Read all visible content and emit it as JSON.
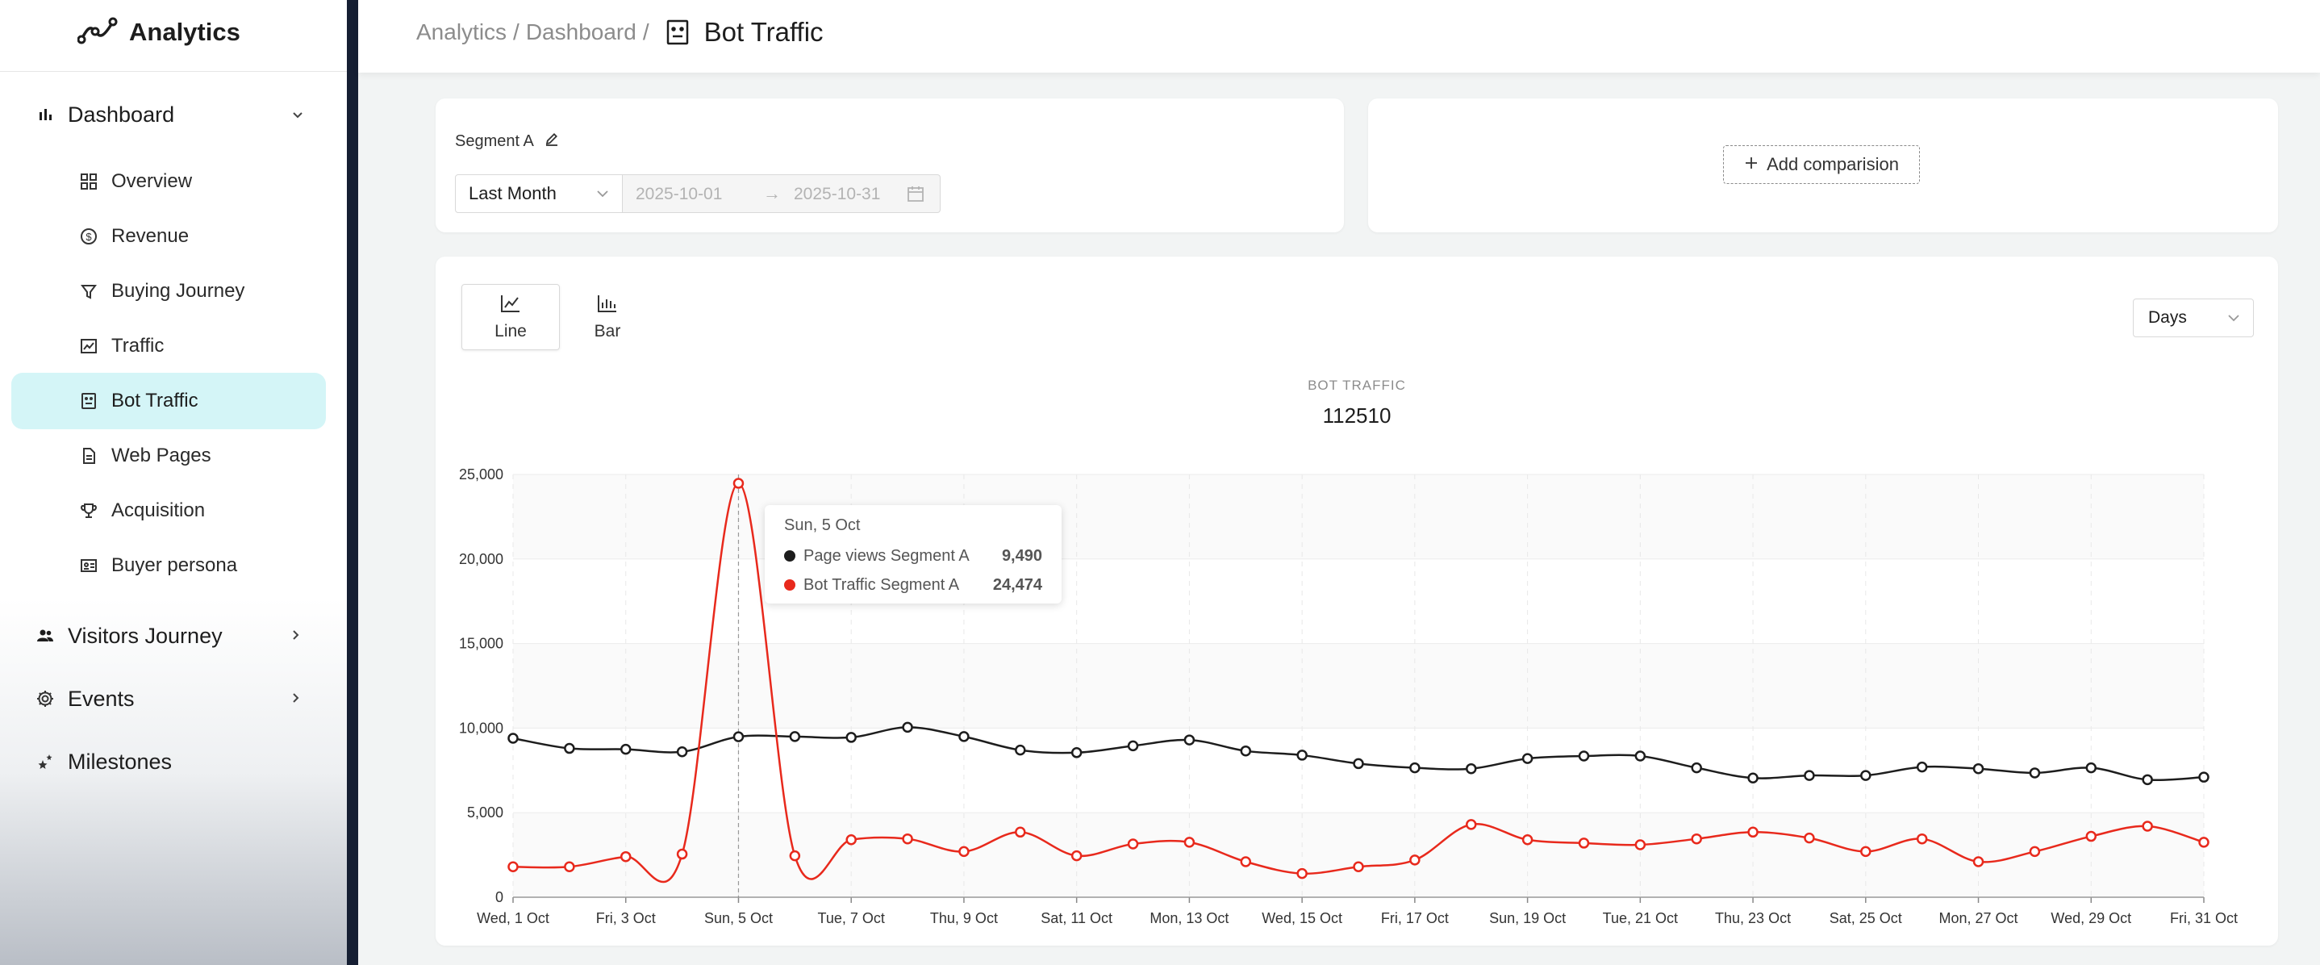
{
  "app": {
    "name": "Analytics"
  },
  "sidebar": {
    "groups": [
      {
        "label": "Dashboard",
        "icon": "bar-chart-icon",
        "expanded": true
      },
      {
        "label": "Visitors Journey",
        "icon": "users-icon",
        "expanded": false
      },
      {
        "label": "Events",
        "icon": "gear-icon",
        "expanded": false
      },
      {
        "label": "Milestones",
        "icon": "stars-icon",
        "expanded": false
      }
    ],
    "items": [
      {
        "label": "Overview",
        "icon": "grid-icon"
      },
      {
        "label": "Revenue",
        "icon": "dollar-icon"
      },
      {
        "label": "Buying Journey",
        "icon": "funnel-icon"
      },
      {
        "label": "Traffic",
        "icon": "line-chart-icon"
      },
      {
        "label": "Bot Traffic",
        "icon": "robot-icon",
        "active": true
      },
      {
        "label": "Web Pages",
        "icon": "file-icon"
      },
      {
        "label": "Acquisition",
        "icon": "trophy-icon"
      },
      {
        "label": "Buyer persona",
        "icon": "id-card-icon"
      }
    ]
  },
  "header": {
    "crumb_analytics": "Analytics",
    "crumb_dashboard": "Dashboard",
    "separator": "/",
    "title": "Bot Traffic"
  },
  "segment": {
    "label": "Segment A",
    "range": "Last Month",
    "date_start": "2025-10-01",
    "date_end": "2025-10-31",
    "arrow": "→"
  },
  "comparison": {
    "add_label": "Add comparision"
  },
  "chart_controls": {
    "line_label": "Line",
    "bar_label": "Bar",
    "interval": "Days"
  },
  "chart_data": {
    "type": "line",
    "title": "BOT TRAFFIC",
    "subtitle": "112510",
    "x": [
      "Wed, 1 Oct",
      "Thu, 2 Oct",
      "Fri, 3 Oct",
      "Sat, 4 Oct",
      "Sun, 5 Oct",
      "Mon, 6 Oct",
      "Tue, 7 Oct",
      "Wed, 8 Oct",
      "Thu, 9 Oct",
      "Fri, 10 Oct",
      "Sat, 11 Oct",
      "Sun, 12 Oct",
      "Mon, 13 Oct",
      "Tue, 14 Oct",
      "Wed, 15 Oct",
      "Thu, 16 Oct",
      "Fri, 17 Oct",
      "Sat, 18 Oct",
      "Sun, 19 Oct",
      "Mon, 20 Oct",
      "Tue, 21 Oct",
      "Wed, 22 Oct",
      "Thu, 23 Oct",
      "Fri, 24 Oct",
      "Sat, 25 Oct",
      "Sun, 26 Oct",
      "Mon, 27 Oct",
      "Tue, 28 Oct",
      "Wed, 29 Oct",
      "Thu, 30 Oct",
      "Fri, 31 Oct"
    ],
    "xtick_labels": [
      "Wed, 1 Oct",
      "Fri, 3 Oct",
      "Sun, 5 Oct",
      "Tue, 7 Oct",
      "Thu, 9 Oct",
      "Sat, 11 Oct",
      "Mon, 13 Oct",
      "Wed, 15 Oct",
      "Fri, 17 Oct",
      "Sun, 19 Oct",
      "Tue, 21 Oct",
      "Thu, 23 Oct",
      "Sat, 25 Oct",
      "Mon, 27 Oct",
      "Wed, 29 Oct",
      "Fri, 31 Oct"
    ],
    "yticks": [
      "0",
      "5,000",
      "10,000",
      "15,000",
      "20,000",
      "25,000"
    ],
    "ylim": [
      0,
      25000
    ],
    "series": [
      {
        "name": "Page views Segment A",
        "color": "#1d1d1d",
        "values": [
          9400,
          8800,
          8750,
          8600,
          9490,
          9500,
          9450,
          10050,
          9500,
          8700,
          8550,
          8950,
          9300,
          8650,
          8400,
          7900,
          7650,
          7600,
          8200,
          8350,
          8350,
          7650,
          7050,
          7200,
          7200,
          7700,
          7600,
          7350,
          7650,
          6950,
          7100
        ]
      },
      {
        "name": "Bot Traffic Segment A",
        "color": "#e8291c",
        "values": [
          1800,
          1800,
          2400,
          2550,
          24474,
          2450,
          3400,
          3450,
          2700,
          3850,
          2450,
          3150,
          3250,
          2100,
          1400,
          1800,
          2200,
          4300,
          3400,
          3200,
          3100,
          3450,
          3850,
          3500,
          2700,
          3450,
          2100,
          2700,
          3600,
          4200,
          3250
        ]
      }
    ],
    "grid": true,
    "hover_index": 4,
    "tooltip": {
      "title": "Sun, 5 Oct",
      "rows": [
        {
          "name": "Page views Segment A",
          "value": "9,490",
          "color": "#1d1d1d"
        },
        {
          "name": "Bot Traffic Segment A",
          "value": "24,474",
          "color": "#e8291c"
        }
      ]
    }
  }
}
